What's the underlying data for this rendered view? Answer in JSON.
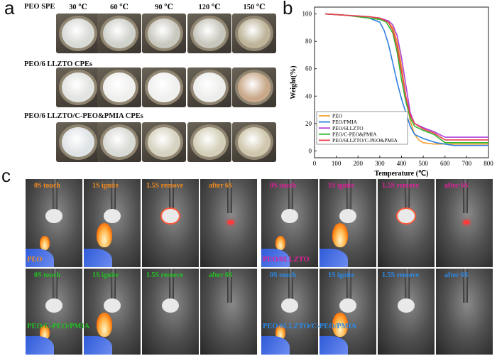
{
  "panel_a": {
    "letter": "a",
    "temperatures": [
      "30 ℃",
      "60 ℃",
      "90 ℃",
      "120 ℃",
      "150 ℃"
    ],
    "rows": [
      {
        "label": "PEO SPE",
        "films": [
          "#d8dad6",
          "#cfd1cb",
          "#c9c8bf",
          "#c7c6bc",
          "#bdb49a"
        ]
      },
      {
        "label": "PEO/6 LLZTO CPEs",
        "films": [
          "#e2e4e1",
          "#efefee",
          "#f0f0ef",
          "#ededec",
          "#c9a98a"
        ]
      },
      {
        "label": "PEO/6 LLZTO/C-PEO&PMIA CPEs",
        "films": [
          "#dfe3e6",
          "#d8dad5",
          "#d6d2c0",
          "#d4cfb8",
          "#cfc7ad"
        ]
      }
    ]
  },
  "panel_b": {
    "letter": "b"
  },
  "chart_data": {
    "type": "line",
    "xlabel": "Temperature (℃)",
    "ylabel": "Weight(%)",
    "xlim": [
      0,
      800
    ],
    "ylim": [
      -5,
      105
    ],
    "xticks": [
      0,
      100,
      200,
      300,
      400,
      500,
      600,
      700,
      800
    ],
    "yticks": [
      0,
      20,
      40,
      60,
      80,
      100
    ],
    "legend_position": "bottom-left",
    "series": [
      {
        "name": "PEO",
        "color": "#f0a030",
        "x": [
          50,
          150,
          250,
          300,
          340,
          360,
          380,
          400,
          420,
          440,
          460,
          480,
          500,
          550,
          600,
          800
        ],
        "y": [
          100,
          99,
          97,
          96,
          94,
          90,
          80,
          62,
          40,
          22,
          12,
          8,
          6,
          5,
          5,
          5
        ]
      },
      {
        "name": "PEO/PMIA",
        "color": "#2f7fe0",
        "x": [
          50,
          150,
          250,
          300,
          320,
          340,
          360,
          380,
          400,
          420,
          440,
          460,
          500,
          560,
          640,
          800
        ],
        "y": [
          100,
          99,
          97,
          94,
          88,
          78,
          64,
          50,
          38,
          28,
          18,
          12,
          9,
          6,
          4,
          4
        ]
      },
      {
        "name": "PEO/6LLZTO",
        "color": "#b040d8",
        "x": [
          50,
          150,
          250,
          300,
          340,
          360,
          380,
          400,
          420,
          440,
          460,
          500,
          550,
          600,
          800
        ],
        "y": [
          100,
          99,
          98,
          97,
          95,
          92,
          84,
          68,
          48,
          28,
          20,
          17,
          14,
          10,
          10
        ]
      },
      {
        "name": "PEO/C-PEO&PMIA",
        "color": "#2fb82f",
        "x": [
          50,
          150,
          250,
          300,
          330,
          360,
          380,
          400,
          420,
          440,
          460,
          500,
          550,
          600,
          800
        ],
        "y": [
          100,
          99,
          97,
          96,
          94,
          86,
          72,
          52,
          36,
          24,
          18,
          15,
          12,
          6,
          6
        ]
      },
      {
        "name": "PEO/6LLZTO/C-PEO&PMIA",
        "color": "#e8404a",
        "x": [
          50,
          150,
          250,
          300,
          340,
          360,
          380,
          400,
          420,
          440,
          460,
          500,
          550,
          600,
          800
        ],
        "y": [
          100,
          99,
          98,
          97,
          94,
          88,
          76,
          58,
          40,
          26,
          20,
          16,
          13,
          8,
          8
        ]
      }
    ]
  },
  "panel_c": {
    "letter": "c",
    "captions": [
      "0S touch",
      "1S ignite",
      "1.5S remove",
      "after 6S"
    ],
    "groups": [
      {
        "tag": "PEO",
        "color": "#f08a20"
      },
      {
        "tag": "PEO/6LLZTO",
        "color": "#e0209a"
      },
      {
        "tag": "PEO/C-PEO/PMIA",
        "color": "#22c022"
      },
      {
        "tag": "PEO/6LLZTO/C-PEO/PMIA",
        "color": "#2a8ae8"
      }
    ]
  }
}
